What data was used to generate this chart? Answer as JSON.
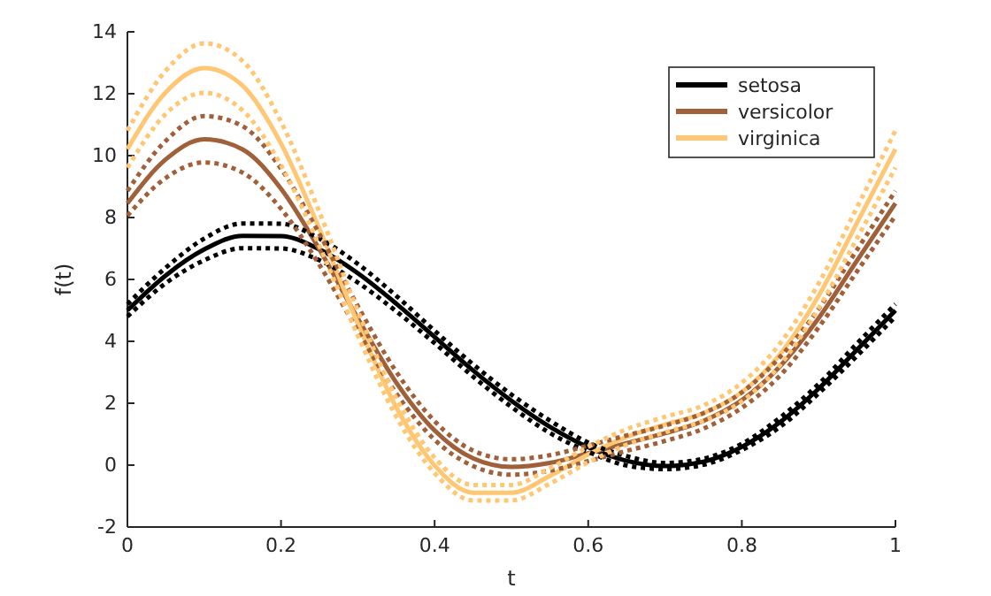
{
  "chart_data": {
    "type": "line",
    "xlabel": "t",
    "ylabel": "f(t)",
    "x": [
      0,
      0.05,
      0.1,
      0.15,
      0.2,
      0.25,
      0.3,
      0.35,
      0.4,
      0.45,
      0.5,
      0.55,
      0.6,
      0.65,
      0.7,
      0.75,
      0.8,
      0.85,
      0.9,
      0.95,
      1
    ],
    "xlim": [
      0,
      1
    ],
    "xticks": [
      0,
      0.2,
      0.4,
      0.6,
      0.8,
      1
    ],
    "ylim": [
      -2,
      14
    ],
    "yticks": [
      -2,
      0,
      2,
      4,
      6,
      8,
      10,
      12,
      14
    ],
    "legend": "top right",
    "line_style": "solid",
    "series": [
      {
        "name": "setosa",
        "color": "#000000",
        "values": [
          5.0,
          6.13,
          6.97,
          7.41,
          7.4,
          6.97,
          6.2,
          5.22,
          4.14,
          3.06,
          2.08,
          1.24,
          0.58,
          0.14,
          -0.03,
          0.11,
          0.59,
          1.39,
          2.47,
          3.73,
          5.0
        ]
      },
      {
        "name": "versicolor",
        "color": "#a0603a",
        "values": [
          8.46,
          9.88,
          10.53,
          10.2,
          8.93,
          6.97,
          4.74,
          2.67,
          1.12,
          0.22,
          -0.06,
          0.07,
          0.38,
          0.71,
          1.03,
          1.43,
          2.1,
          3.2,
          4.75,
          6.61,
          8.46
        ]
      },
      {
        "name": "virginica",
        "color": "#ffc773",
        "values": [
          10.21,
          12.05,
          12.83,
          12.26,
          10.39,
          7.63,
          4.58,
          1.87,
          -0.01,
          -0.89,
          -0.89,
          -0.35,
          0.34,
          0.91,
          1.31,
          1.68,
          2.36,
          3.59,
          5.47,
          7.83,
          10.21
        ]
      },
      {
        "color": "#000000",
        "line_style": "dotted",
        "values": [
          4.8,
          5.88,
          6.62,
          7.01,
          7.0,
          6.62,
          5.9,
          4.97,
          3.94,
          2.86,
          1.88,
          1.04,
          0.43,
          -0.01,
          -0.13,
          0.01,
          0.49,
          1.24,
          2.32,
          3.53,
          4.8
        ]
      },
      {
        "color": "#000000",
        "line_style": "dotted",
        "values": [
          5.2,
          6.38,
          7.32,
          7.81,
          7.8,
          7.32,
          6.5,
          5.47,
          4.34,
          3.26,
          2.28,
          1.44,
          0.73,
          0.29,
          0.07,
          0.21,
          0.69,
          1.54,
          2.62,
          3.93,
          5.2
        ]
      },
      {
        "color": "#a0603a",
        "line_style": "dotted",
        "values": [
          8.06,
          9.28,
          9.78,
          9.45,
          8.28,
          6.47,
          4.34,
          2.32,
          0.82,
          -0.03,
          -0.31,
          -0.18,
          0.13,
          0.46,
          0.78,
          1.18,
          1.85,
          2.9,
          4.45,
          6.26,
          8.06
        ]
      },
      {
        "color": "#a0603a",
        "line_style": "dotted",
        "values": [
          8.86,
          10.48,
          11.28,
          10.95,
          9.58,
          7.47,
          5.14,
          3.02,
          1.42,
          0.47,
          0.19,
          0.32,
          0.63,
          0.96,
          1.28,
          1.68,
          2.35,
          3.5,
          5.05,
          6.96,
          8.86
        ]
      },
      {
        "color": "#ffc773",
        "line_style": "dotted",
        "values": [
          9.61,
          11.35,
          12.03,
          11.46,
          9.69,
          7.08,
          4.18,
          1.57,
          -0.26,
          -1.14,
          -1.14,
          -0.6,
          0.09,
          0.66,
          1.06,
          1.43,
          2.06,
          3.24,
          5.07,
          7.33,
          9.61
        ]
      },
      {
        "color": "#ffc773",
        "line_style": "dotted",
        "values": [
          10.81,
          12.75,
          13.63,
          13.06,
          11.09,
          8.18,
          4.98,
          2.17,
          0.24,
          -0.64,
          -0.64,
          -0.1,
          0.59,
          1.16,
          1.56,
          1.93,
          2.66,
          3.94,
          5.87,
          8.33,
          10.81
        ]
      }
    ]
  }
}
